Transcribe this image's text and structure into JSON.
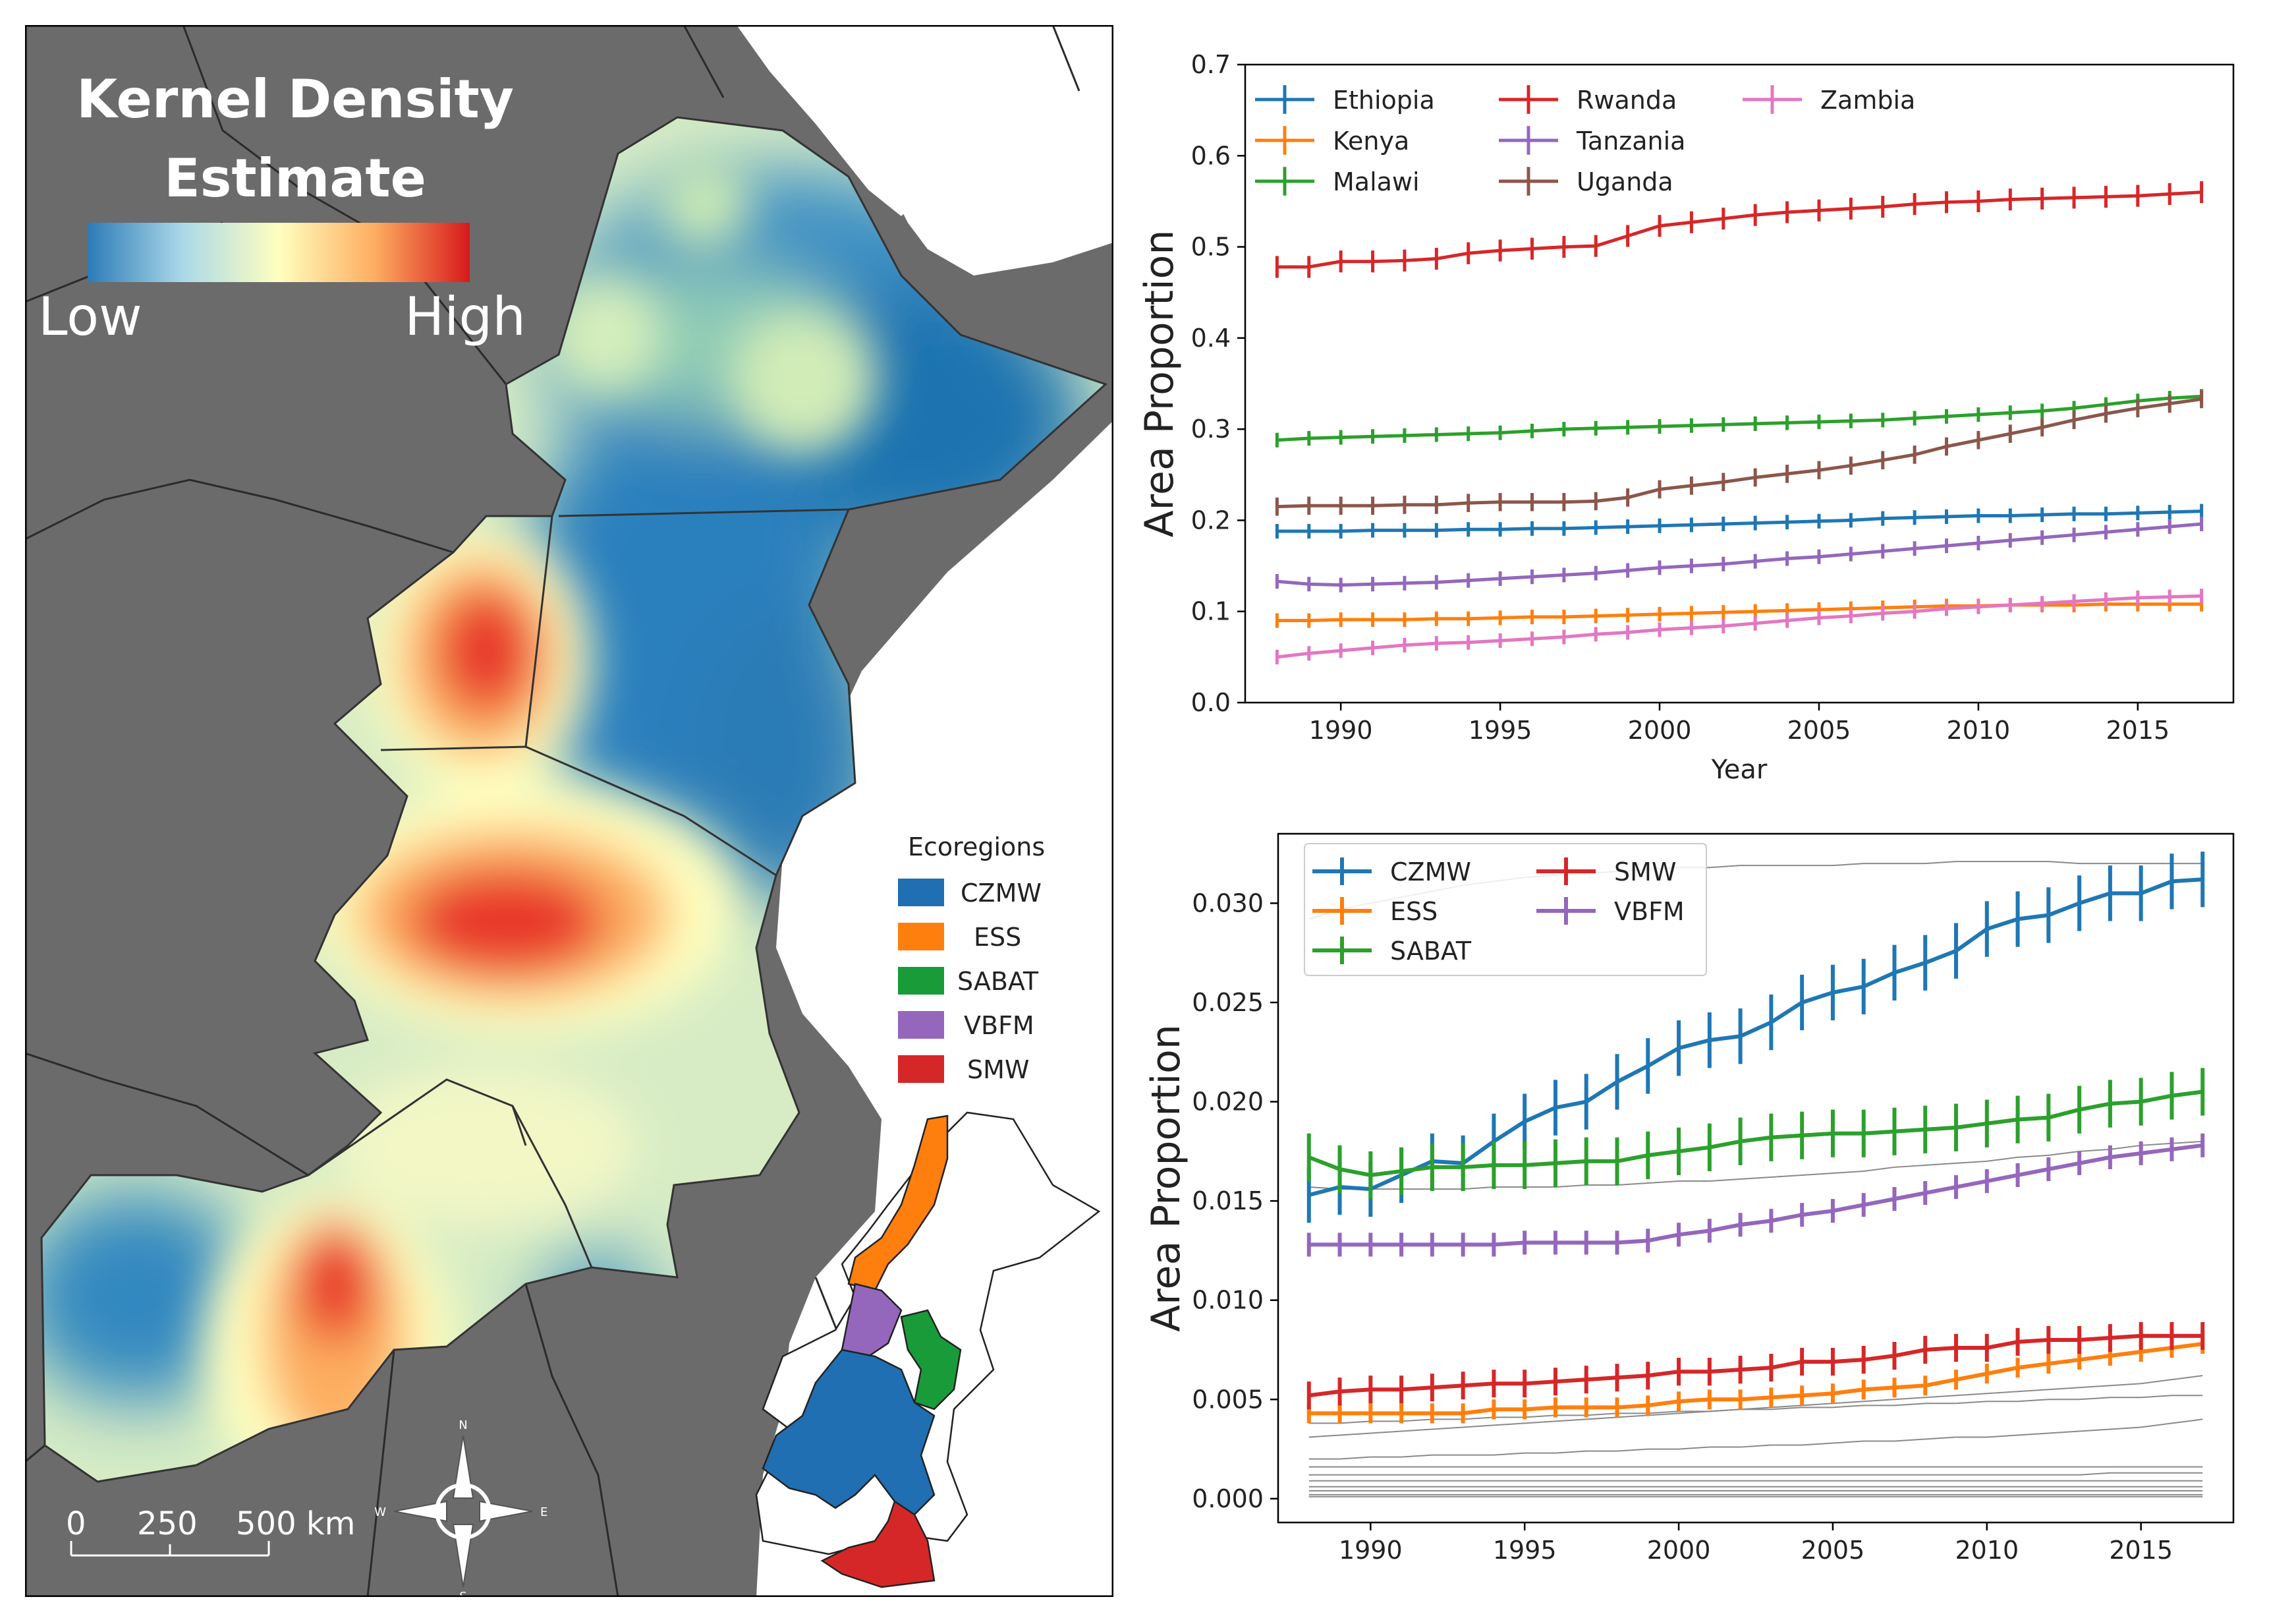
{
  "map": {
    "title_line1": "Kernel Density",
    "title_line2": "Estimate",
    "colorbar_low": "Low",
    "colorbar_high": "High",
    "colorbar_colors": [
      "#2c7bb6",
      "#abd9e9",
      "#ffffbf",
      "#fdae61",
      "#d7191c"
    ],
    "legend_title": "Ecoregions",
    "legend_items": [
      {
        "label": "CZMW",
        "color": "#1f6fb2"
      },
      {
        "label": "ESS",
        "color": "#ff7f0e"
      },
      {
        "label": "SABAT",
        "color": "#1a9b3a"
      },
      {
        "label": "VBFM",
        "color": "#9467bd"
      },
      {
        "label": "SMW",
        "color": "#d62728"
      }
    ],
    "scale_labels": [
      "0",
      "250",
      "500 km"
    ],
    "compass": [
      "N",
      "S",
      "W",
      "E"
    ],
    "land_color": "#6b6b6b",
    "sea_color": "#ffffff"
  },
  "chart_data": [
    {
      "type": "line",
      "title": "",
      "xlabel": "Year",
      "ylabel": "Area Proportion",
      "xlim": [
        1987,
        2018
      ],
      "ylim": [
        0,
        0.7
      ],
      "xticks": [
        1990,
        1995,
        2000,
        2005,
        2010,
        2015
      ],
      "yticks": [
        "0.0",
        "0.1",
        "0.2",
        "0.3",
        "0.4",
        "0.5",
        "0.6",
        "0.7"
      ],
      "legend_position": "top-left",
      "x": [
        1988,
        1989,
        1990,
        1991,
        1992,
        1993,
        1994,
        1995,
        1996,
        1997,
        1998,
        1999,
        2000,
        2001,
        2002,
        2003,
        2004,
        2005,
        2006,
        2007,
        2008,
        2009,
        2010,
        2011,
        2012,
        2013,
        2014,
        2015,
        2016,
        2017
      ],
      "series": [
        {
          "name": "Ethiopia",
          "color": "#1f77b4",
          "err": 0.008,
          "values": [
            0.188,
            0.188,
            0.188,
            0.189,
            0.189,
            0.189,
            0.19,
            0.19,
            0.191,
            0.191,
            0.192,
            0.193,
            0.194,
            0.195,
            0.196,
            0.197,
            0.198,
            0.199,
            0.2,
            0.202,
            0.203,
            0.204,
            0.205,
            0.205,
            0.206,
            0.207,
            0.207,
            0.208,
            0.209,
            0.21
          ]
        },
        {
          "name": "Kenya",
          "color": "#ff7f0e",
          "err": 0.008,
          "values": [
            0.09,
            0.09,
            0.091,
            0.091,
            0.091,
            0.092,
            0.092,
            0.093,
            0.094,
            0.094,
            0.095,
            0.096,
            0.097,
            0.098,
            0.099,
            0.1,
            0.101,
            0.102,
            0.103,
            0.104,
            0.105,
            0.106,
            0.106,
            0.107,
            0.107,
            0.107,
            0.108,
            0.108,
            0.108,
            0.108
          ]
        },
        {
          "name": "Malawi",
          "color": "#2ca02c",
          "err": 0.008,
          "values": [
            0.288,
            0.29,
            0.291,
            0.292,
            0.293,
            0.294,
            0.295,
            0.296,
            0.298,
            0.3,
            0.301,
            0.302,
            0.303,
            0.304,
            0.305,
            0.306,
            0.307,
            0.308,
            0.309,
            0.31,
            0.312,
            0.314,
            0.316,
            0.318,
            0.32,
            0.323,
            0.327,
            0.331,
            0.334,
            0.336
          ]
        },
        {
          "name": "Rwanda",
          "color": "#d62728",
          "err": 0.012,
          "values": [
            0.478,
            0.478,
            0.484,
            0.484,
            0.485,
            0.487,
            0.493,
            0.496,
            0.498,
            0.5,
            0.501,
            0.512,
            0.523,
            0.527,
            0.531,
            0.535,
            0.538,
            0.54,
            0.542,
            0.544,
            0.547,
            0.549,
            0.55,
            0.552,
            0.553,
            0.554,
            0.555,
            0.556,
            0.558,
            0.56
          ]
        },
        {
          "name": "Tanzania",
          "color": "#9467bd",
          "err": 0.008,
          "values": [
            0.133,
            0.13,
            0.129,
            0.13,
            0.131,
            0.132,
            0.134,
            0.136,
            0.138,
            0.14,
            0.142,
            0.145,
            0.148,
            0.15,
            0.152,
            0.155,
            0.158,
            0.16,
            0.163,
            0.166,
            0.169,
            0.172,
            0.175,
            0.178,
            0.181,
            0.184,
            0.187,
            0.19,
            0.193,
            0.196
          ]
        },
        {
          "name": "Uganda",
          "color": "#8c564b",
          "err": 0.01,
          "values": [
            0.215,
            0.216,
            0.216,
            0.216,
            0.217,
            0.217,
            0.219,
            0.22,
            0.22,
            0.22,
            0.221,
            0.225,
            0.234,
            0.238,
            0.242,
            0.247,
            0.251,
            0.255,
            0.26,
            0.266,
            0.272,
            0.281,
            0.288,
            0.295,
            0.302,
            0.31,
            0.317,
            0.323,
            0.328,
            0.333
          ]
        },
        {
          "name": "Zambia",
          "color": "#e377c2",
          "err": 0.008,
          "values": [
            0.05,
            0.054,
            0.057,
            0.06,
            0.063,
            0.065,
            0.066,
            0.068,
            0.07,
            0.072,
            0.075,
            0.077,
            0.08,
            0.082,
            0.084,
            0.087,
            0.09,
            0.093,
            0.095,
            0.098,
            0.1,
            0.103,
            0.105,
            0.107,
            0.109,
            0.111,
            0.113,
            0.115,
            0.116,
            0.117
          ]
        }
      ]
    },
    {
      "type": "line",
      "title": "",
      "xlabel": "",
      "ylabel": "Area Proportion",
      "xlim": [
        1987,
        2018
      ],
      "ylim": [
        -0.0012,
        0.0335
      ],
      "xticks": [
        1990,
        1995,
        2000,
        2005,
        2010,
        2015
      ],
      "yticks": [
        "0.000",
        "0.005",
        "0.010",
        "0.015",
        "0.020",
        "0.025",
        "0.030"
      ],
      "legend_position": "top-left",
      "x": [
        1988,
        1989,
        1990,
        1991,
        1992,
        1993,
        1994,
        1995,
        1996,
        1997,
        1998,
        1999,
        2000,
        2001,
        2002,
        2003,
        2004,
        2005,
        2006,
        2007,
        2008,
        2009,
        2010,
        2011,
        2012,
        2013,
        2014,
        2015,
        2016,
        2017
      ],
      "series": [
        {
          "name": "CZMW",
          "color": "#1f77b4",
          "err": 0.0014,
          "values": [
            0.0153,
            0.0157,
            0.0156,
            0.0163,
            0.017,
            0.0169,
            0.018,
            0.019,
            0.0197,
            0.02,
            0.021,
            0.0218,
            0.0227,
            0.0231,
            0.0233,
            0.024,
            0.025,
            0.0255,
            0.0258,
            0.0265,
            0.027,
            0.0276,
            0.0287,
            0.0292,
            0.0294,
            0.03,
            0.0305,
            0.0305,
            0.0311,
            0.0312
          ]
        },
        {
          "name": "ESS",
          "color": "#ff7f0e",
          "err": 0.0005,
          "values": [
            0.0043,
            0.0043,
            0.0043,
            0.0043,
            0.0043,
            0.0043,
            0.0045,
            0.0045,
            0.0046,
            0.0046,
            0.0046,
            0.0047,
            0.0049,
            0.005,
            0.005,
            0.0051,
            0.0052,
            0.0053,
            0.0055,
            0.0056,
            0.0057,
            0.006,
            0.0063,
            0.0066,
            0.0068,
            0.007,
            0.0072,
            0.0074,
            0.0076,
            0.0078
          ]
        },
        {
          "name": "SABAT",
          "color": "#2ca02c",
          "err": 0.0012,
          "values": [
            0.0172,
            0.0166,
            0.0163,
            0.0165,
            0.0167,
            0.0167,
            0.0168,
            0.0168,
            0.0169,
            0.017,
            0.017,
            0.0173,
            0.0175,
            0.0177,
            0.018,
            0.0182,
            0.0183,
            0.0184,
            0.0184,
            0.0185,
            0.0186,
            0.0187,
            0.0189,
            0.0191,
            0.0192,
            0.0196,
            0.0199,
            0.02,
            0.0203,
            0.0205
          ]
        },
        {
          "name": "SMW",
          "color": "#d62728",
          "err": 0.0007,
          "values": [
            0.0052,
            0.0054,
            0.0055,
            0.0055,
            0.0056,
            0.0057,
            0.0058,
            0.0058,
            0.0059,
            0.006,
            0.0061,
            0.0062,
            0.0064,
            0.0064,
            0.0065,
            0.0066,
            0.0069,
            0.0069,
            0.007,
            0.0072,
            0.0075,
            0.0076,
            0.0076,
            0.0079,
            0.008,
            0.008,
            0.0081,
            0.0082,
            0.0082,
            0.0082
          ]
        },
        {
          "name": "VBFM",
          "color": "#9467bd",
          "err": 0.0006,
          "values": [
            0.0128,
            0.0128,
            0.0128,
            0.0128,
            0.0128,
            0.0128,
            0.0128,
            0.0129,
            0.0129,
            0.0129,
            0.0129,
            0.013,
            0.0133,
            0.0135,
            0.0138,
            0.014,
            0.0143,
            0.0145,
            0.0148,
            0.0151,
            0.0154,
            0.0157,
            0.016,
            0.0163,
            0.0166,
            0.0169,
            0.0172,
            0.0174,
            0.0176,
            0.0178
          ]
        }
      ],
      "background_lines": [
        {
          "values": [
            0.0292,
            0.0297,
            0.03,
            0.0303,
            0.0306,
            0.0309,
            0.0311,
            0.0313,
            0.0314,
            0.0315,
            0.0316,
            0.0317,
            0.0318,
            0.0318,
            0.0319,
            0.0319,
            0.0319,
            0.0319,
            0.032,
            0.032,
            0.032,
            0.0321,
            0.0321,
            0.0321,
            0.0321,
            0.032,
            0.032,
            0.032,
            0.032,
            0.032
          ]
        },
        {
          "values": [
            0.0157,
            0.0156,
            0.0156,
            0.0156,
            0.0156,
            0.0156,
            0.0157,
            0.0157,
            0.0157,
            0.0158,
            0.0158,
            0.0159,
            0.016,
            0.016,
            0.0161,
            0.0162,
            0.0163,
            0.0164,
            0.0165,
            0.0167,
            0.0168,
            0.0169,
            0.017,
            0.0172,
            0.0173,
            0.0175,
            0.0176,
            0.0178,
            0.0179,
            0.018
          ]
        },
        {
          "values": [
            0.0031,
            0.0032,
            0.0033,
            0.0034,
            0.0035,
            0.0036,
            0.0037,
            0.0038,
            0.0039,
            0.004,
            0.0041,
            0.0042,
            0.0043,
            0.0044,
            0.0045,
            0.0046,
            0.0047,
            0.0048,
            0.0049,
            0.005,
            0.0051,
            0.0052,
            0.0053,
            0.0054,
            0.0055,
            0.0056,
            0.0057,
            0.0058,
            0.006,
            0.0062
          ]
        },
        {
          "values": [
            0.0038,
            0.0038,
            0.0039,
            0.0039,
            0.004,
            0.004,
            0.0041,
            0.0041,
            0.0042,
            0.0042,
            0.0043,
            0.0043,
            0.0044,
            0.0044,
            0.0045,
            0.0045,
            0.0046,
            0.0046,
            0.0047,
            0.0047,
            0.0048,
            0.0048,
            0.0049,
            0.0049,
            0.005,
            0.005,
            0.0051,
            0.0051,
            0.0052,
            0.0052
          ]
        },
        {
          "values": [
            0.002,
            0.002,
            0.0021,
            0.0021,
            0.0022,
            0.0022,
            0.0022,
            0.0023,
            0.0023,
            0.0024,
            0.0024,
            0.0025,
            0.0025,
            0.0026,
            0.0026,
            0.0027,
            0.0027,
            0.0028,
            0.0029,
            0.0029,
            0.003,
            0.0031,
            0.0031,
            0.0032,
            0.0033,
            0.0034,
            0.0035,
            0.0036,
            0.0038,
            0.004
          ]
        },
        {
          "values": [
            0.0016,
            0.0016,
            0.0016,
            0.0016,
            0.0016,
            0.0016,
            0.0016,
            0.0016,
            0.0016,
            0.0016,
            0.0016,
            0.0016,
            0.0016,
            0.0016,
            0.0016,
            0.0016,
            0.0016,
            0.0016,
            0.0016,
            0.0016,
            0.0016,
            0.0016,
            0.0016,
            0.0016,
            0.0016,
            0.0016,
            0.0016,
            0.0016,
            0.0016,
            0.0016
          ]
        },
        {
          "values": [
            0.0012,
            0.0012,
            0.0012,
            0.0012,
            0.0012,
            0.0012,
            0.0012,
            0.0012,
            0.0012,
            0.0012,
            0.0012,
            0.0012,
            0.0012,
            0.0012,
            0.0012,
            0.0012,
            0.0012,
            0.0012,
            0.0012,
            0.0012,
            0.0012,
            0.0012,
            0.0012,
            0.0012,
            0.0012,
            0.0012,
            0.0013,
            0.0013,
            0.0013,
            0.0013
          ]
        },
        {
          "values": [
            0.0009,
            0.0009,
            0.0009,
            0.0009,
            0.0009,
            0.0009,
            0.0009,
            0.0009,
            0.0009,
            0.0009,
            0.0009,
            0.0009,
            0.0009,
            0.0009,
            0.0009,
            0.0009,
            0.0009,
            0.0009,
            0.0009,
            0.0009,
            0.0009,
            0.0009,
            0.0009,
            0.0009,
            0.0009,
            0.0009,
            0.0009,
            0.0009,
            0.0009,
            0.0009
          ]
        },
        {
          "values": [
            0.0006,
            0.0006,
            0.0006,
            0.0006,
            0.0006,
            0.0006,
            0.0006,
            0.0006,
            0.0006,
            0.0006,
            0.0006,
            0.0006,
            0.0006,
            0.0006,
            0.0006,
            0.0006,
            0.0006,
            0.0006,
            0.0006,
            0.0006,
            0.0006,
            0.0006,
            0.0006,
            0.0006,
            0.0006,
            0.0006,
            0.0006,
            0.0006,
            0.0006,
            0.0006
          ]
        },
        {
          "values": [
            0.0004,
            0.0004,
            0.0004,
            0.0004,
            0.0004,
            0.0004,
            0.0004,
            0.0004,
            0.0004,
            0.0004,
            0.0004,
            0.0004,
            0.0004,
            0.0004,
            0.0004,
            0.0004,
            0.0004,
            0.0004,
            0.0004,
            0.0004,
            0.0004,
            0.0004,
            0.0004,
            0.0004,
            0.0004,
            0.0004,
            0.0004,
            0.0004,
            0.0004,
            0.0004
          ]
        },
        {
          "values": [
            0.0002,
            0.0002,
            0.0002,
            0.0002,
            0.0002,
            0.0002,
            0.0002,
            0.0002,
            0.0002,
            0.0002,
            0.0002,
            0.0002,
            0.0002,
            0.0002,
            0.0002,
            0.0002,
            0.0002,
            0.0002,
            0.0002,
            0.0002,
            0.0002,
            0.0002,
            0.0002,
            0.0002,
            0.0002,
            0.0002,
            0.0002,
            0.0002,
            0.0002,
            0.0002
          ]
        },
        {
          "values": [
            0.0001,
            0.0001,
            0.0001,
            0.0001,
            0.0001,
            0.0001,
            0.0001,
            0.0001,
            0.0001,
            0.0001,
            0.0001,
            0.0001,
            0.0001,
            0.0001,
            0.0001,
            0.0001,
            0.0001,
            0.0001,
            0.0001,
            0.0001,
            0.0001,
            0.0001,
            0.0001,
            0.0001,
            0.0001,
            0.0001,
            0.0001,
            0.0001,
            0.0001,
            0.0001
          ]
        }
      ]
    }
  ]
}
